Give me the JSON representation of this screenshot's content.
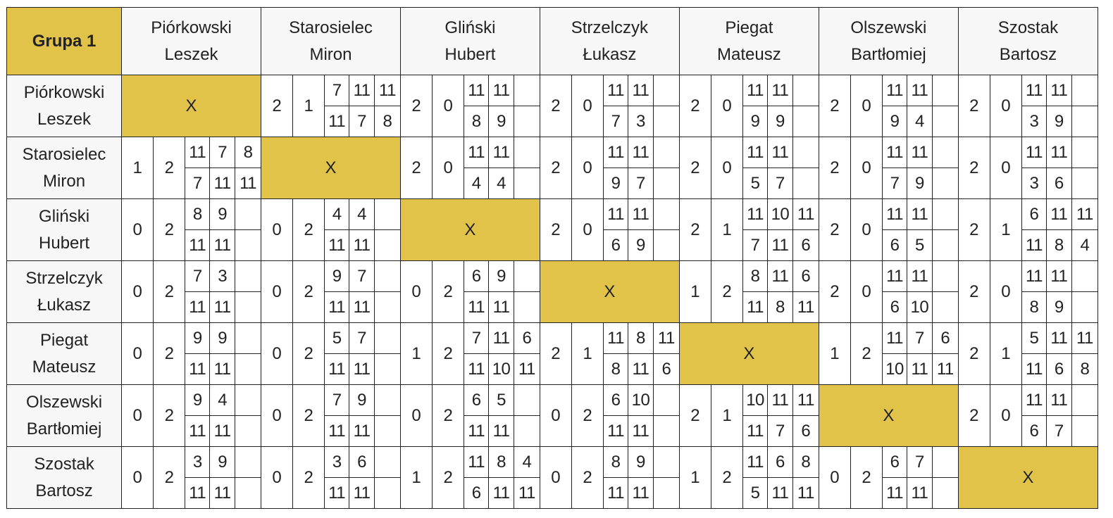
{
  "group_label": "Grupa 1",
  "diagonal_mark": "X",
  "players": [
    {
      "surname": "Piórkowski",
      "given": "Leszek"
    },
    {
      "surname": "Starosielec",
      "given": "Miron"
    },
    {
      "surname": "Gliński",
      "given": "Hubert"
    },
    {
      "surname": "Strzelczyk",
      "given": "Łukasz"
    },
    {
      "surname": "Piegat",
      "given": "Mateusz"
    },
    {
      "surname": "Olszewski",
      "given": "Bartłomiej"
    },
    {
      "surname": "Szostak",
      "given": "Bartosz"
    }
  ],
  "results": [
    [
      null,
      {
        "w": "2",
        "l": "1",
        "top": [
          "7",
          "11",
          "11"
        ],
        "bot": [
          "11",
          "7",
          "8"
        ]
      },
      {
        "w": "2",
        "l": "0",
        "top": [
          "11",
          "11",
          ""
        ],
        "bot": [
          "8",
          "9",
          ""
        ]
      },
      {
        "w": "2",
        "l": "0",
        "top": [
          "11",
          "11",
          ""
        ],
        "bot": [
          "7",
          "3",
          ""
        ]
      },
      {
        "w": "2",
        "l": "0",
        "top": [
          "11",
          "11",
          ""
        ],
        "bot": [
          "9",
          "9",
          ""
        ]
      },
      {
        "w": "2",
        "l": "0",
        "top": [
          "11",
          "11",
          ""
        ],
        "bot": [
          "9",
          "4",
          ""
        ]
      },
      {
        "w": "2",
        "l": "0",
        "top": [
          "11",
          "11",
          ""
        ],
        "bot": [
          "3",
          "9",
          ""
        ]
      }
    ],
    [
      {
        "w": "1",
        "l": "2",
        "top": [
          "11",
          "7",
          "8"
        ],
        "bot": [
          "7",
          "11",
          "11"
        ]
      },
      null,
      {
        "w": "2",
        "l": "0",
        "top": [
          "11",
          "11",
          ""
        ],
        "bot": [
          "4",
          "4",
          ""
        ]
      },
      {
        "w": "2",
        "l": "0",
        "top": [
          "11",
          "11",
          ""
        ],
        "bot": [
          "9",
          "7",
          ""
        ]
      },
      {
        "w": "2",
        "l": "0",
        "top": [
          "11",
          "11",
          ""
        ],
        "bot": [
          "5",
          "7",
          ""
        ]
      },
      {
        "w": "2",
        "l": "0",
        "top": [
          "11",
          "11",
          ""
        ],
        "bot": [
          "7",
          "9",
          ""
        ]
      },
      {
        "w": "2",
        "l": "0",
        "top": [
          "11",
          "11",
          ""
        ],
        "bot": [
          "3",
          "6",
          ""
        ]
      }
    ],
    [
      {
        "w": "0",
        "l": "2",
        "top": [
          "8",
          "9",
          ""
        ],
        "bot": [
          "11",
          "11",
          ""
        ]
      },
      {
        "w": "0",
        "l": "2",
        "top": [
          "4",
          "4",
          ""
        ],
        "bot": [
          "11",
          "11",
          ""
        ]
      },
      null,
      {
        "w": "2",
        "l": "0",
        "top": [
          "11",
          "11",
          ""
        ],
        "bot": [
          "6",
          "9",
          ""
        ]
      },
      {
        "w": "2",
        "l": "1",
        "top": [
          "11",
          "10",
          "11"
        ],
        "bot": [
          "7",
          "11",
          "6"
        ]
      },
      {
        "w": "2",
        "l": "0",
        "top": [
          "11",
          "11",
          ""
        ],
        "bot": [
          "6",
          "5",
          ""
        ]
      },
      {
        "w": "2",
        "l": "1",
        "top": [
          "6",
          "11",
          "11"
        ],
        "bot": [
          "11",
          "8",
          "4"
        ]
      }
    ],
    [
      {
        "w": "0",
        "l": "2",
        "top": [
          "7",
          "3",
          ""
        ],
        "bot": [
          "11",
          "11",
          ""
        ]
      },
      {
        "w": "0",
        "l": "2",
        "top": [
          "9",
          "7",
          ""
        ],
        "bot": [
          "11",
          "11",
          ""
        ]
      },
      {
        "w": "0",
        "l": "2",
        "top": [
          "6",
          "9",
          ""
        ],
        "bot": [
          "11",
          "11",
          ""
        ]
      },
      null,
      {
        "w": "1",
        "l": "2",
        "top": [
          "8",
          "11",
          "6"
        ],
        "bot": [
          "11",
          "8",
          "11"
        ]
      },
      {
        "w": "2",
        "l": "0",
        "top": [
          "11",
          "11",
          ""
        ],
        "bot": [
          "6",
          "10",
          ""
        ]
      },
      {
        "w": "2",
        "l": "0",
        "top": [
          "11",
          "11",
          ""
        ],
        "bot": [
          "8",
          "9",
          ""
        ]
      }
    ],
    [
      {
        "w": "0",
        "l": "2",
        "top": [
          "9",
          "9",
          ""
        ],
        "bot": [
          "11",
          "11",
          ""
        ]
      },
      {
        "w": "0",
        "l": "2",
        "top": [
          "5",
          "7",
          ""
        ],
        "bot": [
          "11",
          "11",
          ""
        ]
      },
      {
        "w": "1",
        "l": "2",
        "top": [
          "7",
          "11",
          "6"
        ],
        "bot": [
          "11",
          "10",
          "11"
        ]
      },
      {
        "w": "2",
        "l": "1",
        "top": [
          "11",
          "8",
          "11"
        ],
        "bot": [
          "8",
          "11",
          "6"
        ]
      },
      null,
      {
        "w": "1",
        "l": "2",
        "top": [
          "11",
          "7",
          "6"
        ],
        "bot": [
          "10",
          "11",
          "11"
        ]
      },
      {
        "w": "2",
        "l": "1",
        "top": [
          "5",
          "11",
          "11"
        ],
        "bot": [
          "11",
          "6",
          "8"
        ]
      }
    ],
    [
      {
        "w": "0",
        "l": "2",
        "top": [
          "9",
          "4",
          ""
        ],
        "bot": [
          "11",
          "11",
          ""
        ]
      },
      {
        "w": "0",
        "l": "2",
        "top": [
          "7",
          "9",
          ""
        ],
        "bot": [
          "11",
          "11",
          ""
        ]
      },
      {
        "w": "0",
        "l": "2",
        "top": [
          "6",
          "5",
          ""
        ],
        "bot": [
          "11",
          "11",
          ""
        ]
      },
      {
        "w": "0",
        "l": "2",
        "top": [
          "6",
          "10",
          ""
        ],
        "bot": [
          "11",
          "11",
          ""
        ]
      },
      {
        "w": "2",
        "l": "1",
        "top": [
          "10",
          "11",
          "11"
        ],
        "bot": [
          "11",
          "7",
          "6"
        ]
      },
      null,
      {
        "w": "2",
        "l": "0",
        "top": [
          "11",
          "11",
          ""
        ],
        "bot": [
          "6",
          "7",
          ""
        ]
      }
    ],
    [
      {
        "w": "0",
        "l": "2",
        "top": [
          "3",
          "9",
          ""
        ],
        "bot": [
          "11",
          "11",
          ""
        ]
      },
      {
        "w": "0",
        "l": "2",
        "top": [
          "3",
          "6",
          ""
        ],
        "bot": [
          "11",
          "11",
          ""
        ]
      },
      {
        "w": "1",
        "l": "2",
        "top": [
          "11",
          "8",
          "4"
        ],
        "bot": [
          "6",
          "11",
          "11"
        ]
      },
      {
        "w": "0",
        "l": "2",
        "top": [
          "8",
          "9",
          ""
        ],
        "bot": [
          "11",
          "11",
          ""
        ]
      },
      {
        "w": "1",
        "l": "2",
        "top": [
          "11",
          "6",
          "8"
        ],
        "bot": [
          "5",
          "11",
          "11"
        ]
      },
      {
        "w": "0",
        "l": "2",
        "top": [
          "6",
          "7",
          ""
        ],
        "bot": [
          "11",
          "11",
          ""
        ]
      },
      null
    ]
  ]
}
